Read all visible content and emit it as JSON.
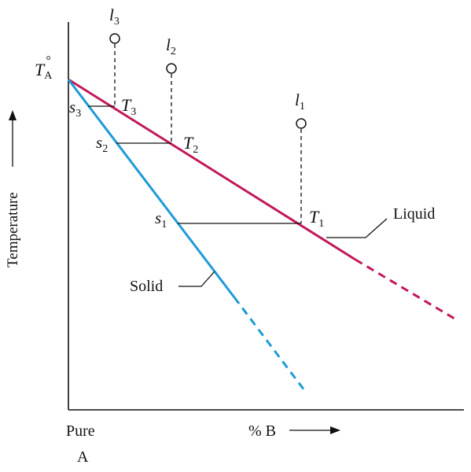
{
  "diagram": {
    "y_axis_label": "Temperature",
    "x_axis_label": "% B",
    "origin_label_line1": "Pure",
    "origin_label_line2": "A",
    "melting_point": {
      "symbol": "T",
      "sub": "A",
      "sup": "°"
    },
    "curve_labels": {
      "liquid": "Liquid",
      "solid": "Solid"
    },
    "liquid_points": [
      {
        "symbol": "l",
        "sub": "1"
      },
      {
        "symbol": "l",
        "sub": "2"
      },
      {
        "symbol": "l",
        "sub": "3"
      }
    ],
    "temperatures": [
      {
        "symbol": "T",
        "sub": "1"
      },
      {
        "symbol": "T",
        "sub": "2"
      },
      {
        "symbol": "T",
        "sub": "3"
      }
    ],
    "solid_points": [
      {
        "symbol": "s",
        "sub": "1"
      },
      {
        "symbol": "s",
        "sub": "2"
      },
      {
        "symbol": "s",
        "sub": "3"
      }
    ],
    "colors": {
      "liquidus": "#c2185b",
      "solidus": "#1e9bd7",
      "axes": "#111111",
      "ink": "#111111"
    }
  }
}
